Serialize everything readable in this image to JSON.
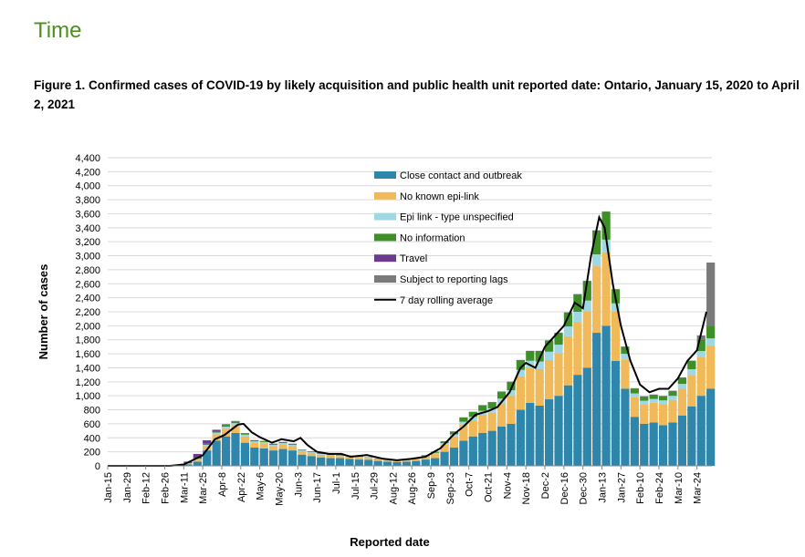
{
  "page": {
    "heading": "Time",
    "caption": "Figure 1. Confirmed cases of COVID-19 by likely acquisition and public health unit reported date: Ontario, January 15, 2020 to April 2, 2021"
  },
  "chart_data": {
    "type": "bar",
    "stacked": true,
    "xlabel": "Reported date",
    "ylabel": "Number of cases",
    "ylim": [
      0,
      4400
    ],
    "yticks": [
      0,
      200,
      400,
      600,
      800,
      1000,
      1200,
      1400,
      1600,
      1800,
      2000,
      2200,
      2400,
      2600,
      2800,
      3000,
      3200,
      3400,
      3600,
      3800,
      4000,
      4200,
      4400
    ],
    "ytick_labels": [
      "0",
      "200",
      "400",
      "600",
      "800",
      "1,000",
      "1,200",
      "1,400",
      "1,600",
      "1,800",
      "2,000",
      "2,200",
      "2,400",
      "2,600",
      "2,800",
      "3,000",
      "3,200",
      "3,400",
      "3,600",
      "3,800",
      "4,000",
      "4,200",
      "4,400"
    ],
    "grid": true,
    "legend_position": "top-center",
    "xtick_labels": [
      "Jan-15",
      "Jan-29",
      "Feb-12",
      "Feb-26",
      "Mar-11",
      "Mar-25",
      "Apr-8",
      "Apr-22",
      "May-6",
      "May-20",
      "Jun-3",
      "Jun-17",
      "Jul-1",
      "Jul-15",
      "Jul-29",
      "Aug-12",
      "Aug-26",
      "Sep-9",
      "Sep-23",
      "Oct-7",
      "Oct-21",
      "Nov-4",
      "Nov-18",
      "Dec-2",
      "Dec-16",
      "Dec-30",
      "Jan-13",
      "Jan-27",
      "Feb-10",
      "Feb-24",
      "Mar-10",
      "Mar-24"
    ],
    "x_resolution": "daily reported counts shown as weekly estimates, 2020-01-15 to 2021-03-31",
    "weeks": [
      "2020-01-15",
      "2020-01-22",
      "2020-01-29",
      "2020-02-05",
      "2020-02-12",
      "2020-02-19",
      "2020-02-26",
      "2020-03-04",
      "2020-03-11",
      "2020-03-18",
      "2020-03-25",
      "2020-04-01",
      "2020-04-08",
      "2020-04-15",
      "2020-04-22",
      "2020-04-29",
      "2020-05-06",
      "2020-05-13",
      "2020-05-20",
      "2020-05-27",
      "2020-06-03",
      "2020-06-10",
      "2020-06-17",
      "2020-06-24",
      "2020-07-01",
      "2020-07-08",
      "2020-07-15",
      "2020-07-22",
      "2020-07-29",
      "2020-08-05",
      "2020-08-12",
      "2020-08-19",
      "2020-08-26",
      "2020-09-02",
      "2020-09-09",
      "2020-09-16",
      "2020-09-23",
      "2020-09-30",
      "2020-10-07",
      "2020-10-14",
      "2020-10-21",
      "2020-10-28",
      "2020-11-04",
      "2020-11-11",
      "2020-11-18",
      "2020-11-25",
      "2020-12-02",
      "2020-12-09",
      "2020-12-16",
      "2020-12-23",
      "2020-12-30",
      "2021-01-06",
      "2021-01-13",
      "2021-01-20",
      "2021-01-27",
      "2021-02-03",
      "2021-02-10",
      "2021-02-17",
      "2021-02-24",
      "2021-03-03",
      "2021-03-10",
      "2021-03-17",
      "2021-03-24",
      "2021-03-31"
    ],
    "series": [
      {
        "name": "Close contact and outbreak",
        "color": "#2e86ab",
        "values": [
          0,
          0,
          0,
          0,
          0,
          0,
          0,
          5,
          20,
          60,
          220,
          360,
          420,
          470,
          330,
          260,
          250,
          220,
          240,
          220,
          160,
          140,
          120,
          110,
          110,
          100,
          90,
          85,
          70,
          60,
          55,
          60,
          70,
          90,
          110,
          200,
          260,
          360,
          420,
          470,
          500,
          560,
          600,
          800,
          900,
          860,
          950,
          1000,
          1150,
          1300,
          1400,
          1900,
          2000,
          1500,
          1100,
          700,
          600,
          620,
          580,
          620,
          720,
          850,
          1000,
          1100
        ]
      },
      {
        "name": "No known epi-link",
        "color": "#f0b959",
        "values": [
          0,
          0,
          0,
          0,
          0,
          0,
          0,
          2,
          10,
          30,
          60,
          90,
          110,
          110,
          90,
          70,
          70,
          65,
          70,
          65,
          50,
          45,
          40,
          35,
          30,
          30,
          30,
          25,
          22,
          20,
          20,
          25,
          30,
          40,
          60,
          100,
          160,
          230,
          230,
          260,
          260,
          330,
          400,
          480,
          500,
          520,
          560,
          600,
          700,
          750,
          800,
          950,
          1050,
          700,
          420,
          280,
          280,
          280,
          300,
          320,
          380,
          450,
          550,
          620
        ]
      },
      {
        "name": "Epi link - type unspecified",
        "color": "#9fd7e3",
        "values": [
          0,
          0,
          0,
          0,
          0,
          0,
          0,
          0,
          5,
          10,
          20,
          25,
          30,
          30,
          25,
          20,
          20,
          15,
          15,
          15,
          10,
          10,
          10,
          8,
          8,
          8,
          8,
          6,
          6,
          5,
          5,
          6,
          8,
          10,
          15,
          25,
          30,
          40,
          50,
          55,
          60,
          70,
          80,
          90,
          100,
          110,
          120,
          130,
          140,
          150,
          160,
          170,
          180,
          120,
          80,
          55,
          50,
          55,
          55,
          60,
          70,
          80,
          90,
          100
        ]
      },
      {
        "name": "No information",
        "color": "#3f8f29",
        "values": [
          0,
          0,
          0,
          0,
          0,
          0,
          0,
          0,
          5,
          10,
          15,
          20,
          25,
          25,
          20,
          15,
          15,
          15,
          15,
          15,
          10,
          10,
          10,
          8,
          8,
          8,
          8,
          6,
          6,
          5,
          5,
          6,
          8,
          10,
          15,
          25,
          40,
          60,
          70,
          80,
          90,
          100,
          120,
          140,
          140,
          150,
          160,
          170,
          200,
          250,
          280,
          340,
          400,
          200,
          100,
          70,
          60,
          60,
          60,
          70,
          90,
          120,
          160,
          180
        ]
      },
      {
        "name": "Travel",
        "color": "#6b3b8c",
        "values": [
          0,
          0,
          0,
          0,
          0,
          0,
          0,
          5,
          20,
          60,
          50,
          20,
          8,
          5,
          3,
          2,
          2,
          2,
          2,
          2,
          2,
          2,
          2,
          2,
          2,
          2,
          2,
          2,
          2,
          2,
          2,
          2,
          2,
          2,
          2,
          2,
          2,
          2,
          2,
          2,
          2,
          2,
          2,
          2,
          2,
          2,
          2,
          2,
          2,
          3,
          3,
          3,
          3,
          3,
          3,
          3,
          3,
          3,
          3,
          3,
          3,
          3,
          3,
          3
        ]
      },
      {
        "name": "Subject to reporting lags",
        "color": "#7a7a7a",
        "values": [
          0,
          0,
          0,
          0,
          0,
          0,
          0,
          0,
          0,
          0,
          0,
          0,
          0,
          0,
          0,
          0,
          0,
          0,
          0,
          0,
          0,
          0,
          0,
          0,
          0,
          0,
          0,
          0,
          0,
          0,
          0,
          0,
          0,
          0,
          0,
          0,
          0,
          0,
          0,
          0,
          0,
          0,
          0,
          0,
          0,
          0,
          0,
          0,
          0,
          0,
          0,
          0,
          0,
          0,
          0,
          0,
          0,
          0,
          0,
          0,
          0,
          0,
          60,
          900
        ]
      }
    ],
    "line_series": {
      "name": "7 day rolling average",
      "color": "#000000",
      "points": [
        [
          "2020-01-15",
          0
        ],
        [
          "2020-03-01",
          0
        ],
        [
          "2020-03-11",
          20
        ],
        [
          "2020-03-25",
          150
        ],
        [
          "2020-04-03",
          380
        ],
        [
          "2020-04-10",
          440
        ],
        [
          "2020-04-20",
          590
        ],
        [
          "2020-04-24",
          600
        ],
        [
          "2020-04-30",
          480
        ],
        [
          "2020-05-06",
          410
        ],
        [
          "2020-05-15",
          330
        ],
        [
          "2020-05-22",
          380
        ],
        [
          "2020-05-31",
          350
        ],
        [
          "2020-06-05",
          400
        ],
        [
          "2020-06-10",
          300
        ],
        [
          "2020-06-17",
          200
        ],
        [
          "2020-06-26",
          170
        ],
        [
          "2020-07-05",
          170
        ],
        [
          "2020-07-12",
          130
        ],
        [
          "2020-07-24",
          155
        ],
        [
          "2020-08-05",
          100
        ],
        [
          "2020-08-15",
          80
        ],
        [
          "2020-08-26",
          100
        ],
        [
          "2020-09-05",
          130
        ],
        [
          "2020-09-16",
          250
        ],
        [
          "2020-09-26",
          450
        ],
        [
          "2020-10-03",
          560
        ],
        [
          "2020-10-12",
          730
        ],
        [
          "2020-10-21",
          780
        ],
        [
          "2020-10-28",
          840
        ],
        [
          "2020-11-06",
          1050
        ],
        [
          "2020-11-14",
          1400
        ],
        [
          "2020-11-18",
          1470
        ],
        [
          "2020-11-25",
          1400
        ],
        [
          "2020-12-02",
          1700
        ],
        [
          "2020-12-16",
          2000
        ],
        [
          "2020-12-24",
          2330
        ],
        [
          "2020-12-30",
          2250
        ],
        [
          "2021-01-05",
          3000
        ],
        [
          "2021-01-11",
          3550
        ],
        [
          "2021-01-15",
          3400
        ],
        [
          "2021-01-21",
          2600
        ],
        [
          "2021-01-27",
          2000
        ],
        [
          "2021-02-03",
          1500
        ],
        [
          "2021-02-10",
          1160
        ],
        [
          "2021-02-17",
          1050
        ],
        [
          "2021-02-24",
          1100
        ],
        [
          "2021-03-03",
          1100
        ],
        [
          "2021-03-10",
          1250
        ],
        [
          "2021-03-17",
          1500
        ],
        [
          "2021-03-24",
          1650
        ],
        [
          "2021-03-31",
          2200
        ]
      ]
    }
  }
}
